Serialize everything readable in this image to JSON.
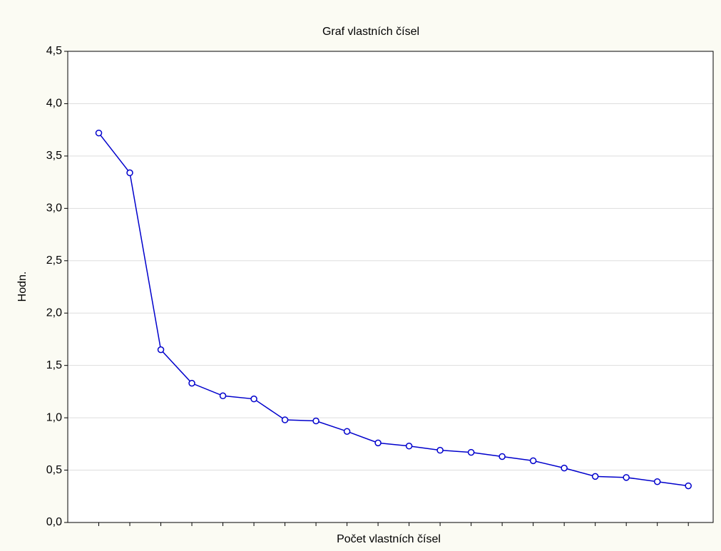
{
  "chart_data": {
    "type": "line",
    "title": "Graf vlastních čísel",
    "xlabel": "Počet vlastních čísel",
    "ylabel": "Hodn.",
    "categories": [
      null,
      null,
      null,
      null,
      null,
      null,
      null,
      null,
      null,
      null,
      null,
      null,
      null,
      null,
      null,
      null,
      null,
      null,
      null,
      null
    ],
    "series": [
      {
        "name": null,
        "color": "#0000cc",
        "values": [
          3.72,
          3.34,
          1.65,
          1.33,
          1.21,
          1.18,
          0.98,
          0.97,
          0.87,
          0.76,
          0.73,
          0.69,
          0.67,
          0.63,
          0.59,
          0.52,
          0.44,
          0.43,
          0.39,
          0.35
        ]
      }
    ],
    "ylim": [
      0,
      4.5
    ],
    "yticks": [
      {
        "value": 0,
        "label": "0,0"
      },
      {
        "value": 0.5,
        "label": "0,5"
      },
      {
        "value": 1,
        "label": "1,0"
      },
      {
        "value": 1.5,
        "label": "1,5"
      },
      {
        "value": 2,
        "label": "2,0"
      },
      {
        "value": 2.5,
        "label": "2,5"
      },
      {
        "value": 3,
        "label": "3,0"
      },
      {
        "value": 3.5,
        "label": "3,5"
      },
      {
        "value": 4,
        "label": "4,0"
      },
      {
        "value": 4.5,
        "label": "4,5"
      }
    ],
    "grid": true
  }
}
